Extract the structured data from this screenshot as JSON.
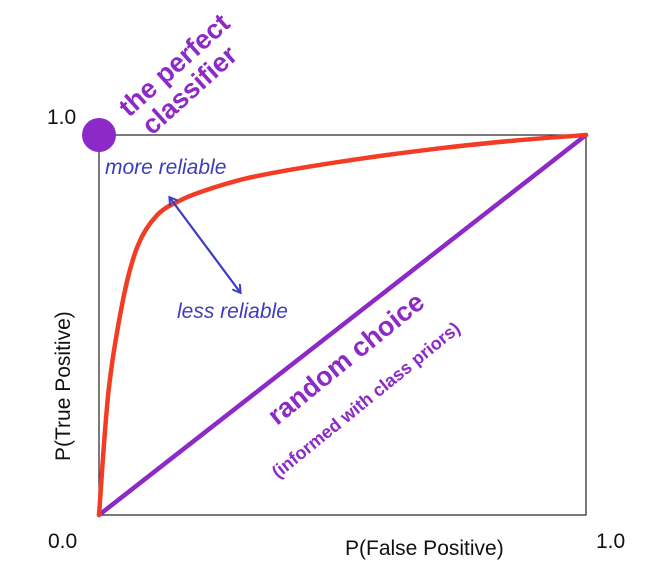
{
  "colors": {
    "roc_curve": "#f23c24",
    "random_line": "#8c29c7",
    "blue_annotation": "#3c3cc0",
    "frame": "#222222",
    "text": "#111111"
  },
  "chart_data": {
    "type": "line",
    "xlabel": "P(False Positive)",
    "ylabel": "P(True Positive)",
    "xlim": [
      0,
      1
    ],
    "ylim": [
      0,
      1
    ],
    "tick_labels": {
      "origin": "0.0",
      "x_max": "1.0",
      "y_max": "1.0"
    },
    "grid": false,
    "series": [
      {
        "x": [
          0,
          0.02,
          0.05,
          0.08,
          0.12,
          0.17,
          0.22,
          0.3,
          0.4,
          0.55,
          0.7,
          0.85,
          1.0
        ],
        "y": [
          0,
          0.33,
          0.57,
          0.71,
          0.79,
          0.83,
          0.855,
          0.885,
          0.91,
          0.94,
          0.965,
          0.985,
          1.0
        ]
      },
      {
        "x": [
          0,
          1
        ],
        "y": [
          0,
          1
        ]
      }
    ],
    "points": [
      {
        "x": 0,
        "y": 1
      }
    ],
    "annotations": {
      "perfect_line1": "the perfect",
      "perfect_line2": "classifier",
      "more_reliable": "more reliable",
      "less_reliable": "less reliable",
      "random_choice": "random choice",
      "informed": "(informed with class priors)"
    }
  }
}
